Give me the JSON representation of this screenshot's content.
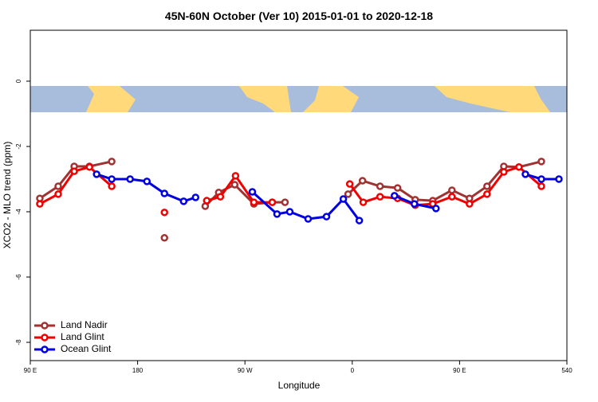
{
  "chart_data": {
    "type": "line",
    "title": "45N-60N October (Ver 10)   2015-01-01 to 2020-12-18",
    "x_label": "Longitude",
    "y_label": "XCO2 - MLO trend (ppm)",
    "xlim": [
      90,
      540
    ],
    "ylim": [
      -8.56,
      1.56
    ],
    "xticks": [
      {
        "value": 90,
        "label": "90 E"
      },
      180,
      {
        "value": 270,
        "label": "90 W"
      },
      {
        "value": 360,
        "label": "0"
      },
      {
        "value": 450,
        "label": "90 E"
      },
      540
    ],
    "yticks": [
      0,
      -2,
      -4,
      -6,
      -8
    ],
    "legend": "bottom-left",
    "series": [
      {
        "name": "Land Nadir",
        "color": "#a03232",
        "x": [
          98,
          113.4,
          126.8,
          139.6,
          158.3,
          null,
          202.5,
          null,
          236.7,
          248,
          261.4,
          277.5,
          292.9,
          303.6,
          null,
          356.5,
          368.6,
          383.3,
          398,
          412.8,
          427.5,
          443.6,
          458.3,
          473,
          487.1,
          499.8,
          518.6
        ],
        "values": [
          -3.59,
          -3.22,
          -2.61,
          -2.61,
          -2.46,
          null,
          -4.8,
          null,
          -3.83,
          -3.41,
          -3.17,
          -3.76,
          -3.71,
          -3.71,
          null,
          -3.46,
          -3.05,
          -3.22,
          -3.27,
          -3.63,
          -3.66,
          -3.34,
          -3.59,
          -3.22,
          -2.61,
          -2.63,
          -2.46
        ]
      },
      {
        "name": "Land Glint",
        "color": "#f00000",
        "x": [
          98,
          113.4,
          126.8,
          139.6,
          158.3,
          null,
          202.5,
          null,
          238,
          249.4,
          262.1,
          277.5,
          292.9,
          null,
          357.9,
          369.2,
          383.3,
          398,
          412.8,
          427.5,
          443.6,
          458.3,
          473,
          487.1,
          499.8,
          518.6
        ],
        "values": [
          -3.76,
          -3.46,
          -2.76,
          -2.63,
          -3.22,
          null,
          -4.02,
          null,
          -3.66,
          -3.54,
          -2.9,
          -3.71,
          -3.71,
          null,
          -3.15,
          -3.71,
          -3.54,
          -3.59,
          -3.8,
          -3.76,
          -3.54,
          -3.76,
          -3.46,
          -2.78,
          -2.63,
          -3.22
        ]
      },
      {
        "name": "Ocean Glint",
        "color": "#0000e0",
        "x": [
          145.6,
          158.3,
          173.7,
          187.8,
          202.5,
          218.6,
          228.6,
          null,
          276.2,
          296.9,
          307.6,
          323,
          338.4,
          352.5,
          365.9,
          null,
          395.4,
          412.1,
          430.2,
          null,
          505.2,
          518.6,
          533.3
        ],
        "values": [
          -2.85,
          -3,
          -3,
          -3.07,
          -3.44,
          -3.68,
          -3.56,
          null,
          -3.39,
          -4.07,
          -4,
          -4.22,
          -4.15,
          -3.61,
          -4.27,
          null,
          -3.51,
          -3.76,
          -3.9,
          null,
          -2.85,
          -3,
          -3
        ]
      }
    ]
  }
}
